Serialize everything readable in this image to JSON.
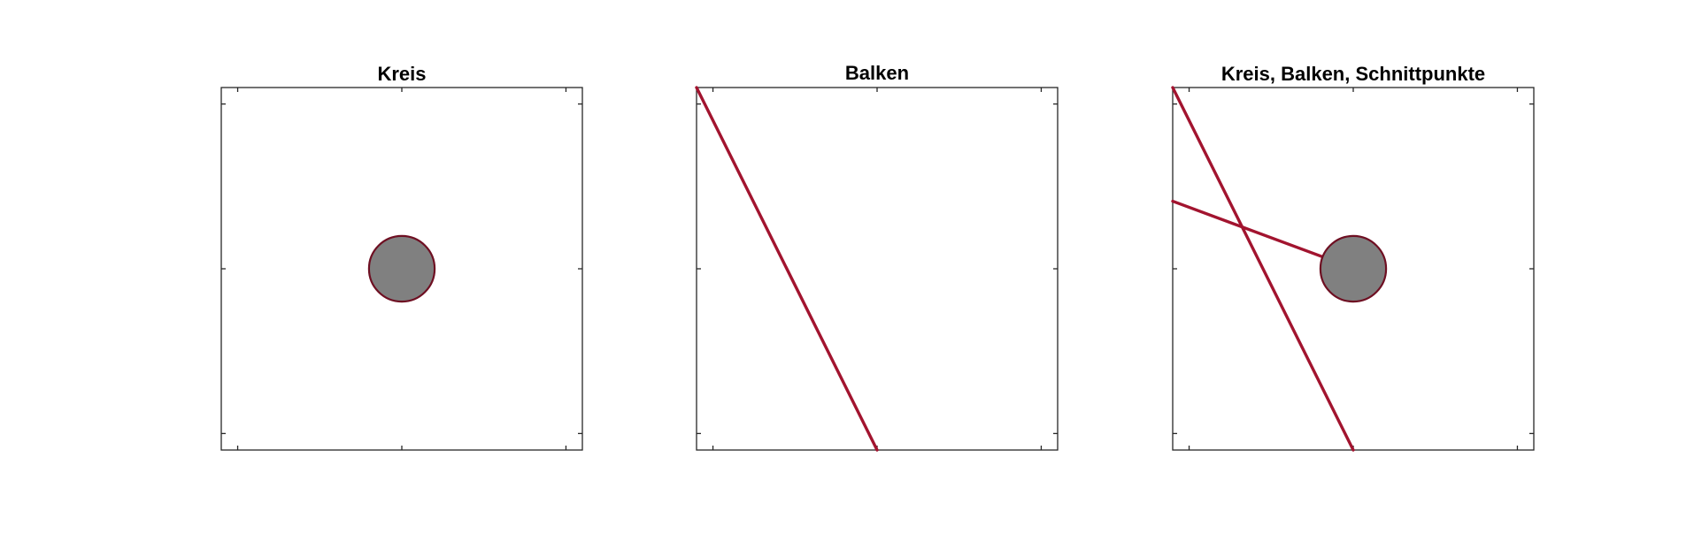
{
  "figure": {
    "colors": {
      "beam": "#a2142f",
      "circle_fill": "#808080",
      "circle_edge": "#6e0f22",
      "axes": "#262626",
      "background": "#ffffff"
    },
    "panels": [
      {
        "title": "Kreis",
        "shows_circle": true,
        "beam_segments": [],
        "xlim": [
          -1.1,
          1.1
        ],
        "ylim": [
          -1.1,
          1.1
        ],
        "ticks": [
          -1,
          0,
          1
        ]
      },
      {
        "title": "Balken",
        "shows_circle": false,
        "beam_segments": [
          {
            "from": [
              -1.1,
              1.1
            ],
            "to": [
              0,
              -1.1
            ]
          }
        ],
        "xlim": [
          -1.1,
          1.1
        ],
        "ylim": [
          -1.1,
          1.1
        ],
        "ticks": [
          -1,
          0,
          1
        ]
      },
      {
        "title": "Kreis, Balken, Schnittpunkte",
        "shows_circle": true,
        "beam_segments": [
          {
            "from": [
              -1.1,
              1.1
            ],
            "to": [
              0,
              -1.1
            ]
          },
          {
            "from": [
              -1.1,
              0.41
            ],
            "to": [
              -0.18,
              0.07
            ]
          }
        ],
        "xlim": [
          -1.1,
          1.1
        ],
        "ylim": [
          -1.1,
          1.1
        ],
        "ticks": [
          -1,
          0,
          1
        ]
      }
    ],
    "circle": {
      "center": [
        0,
        0
      ],
      "radius": 0.2
    }
  }
}
